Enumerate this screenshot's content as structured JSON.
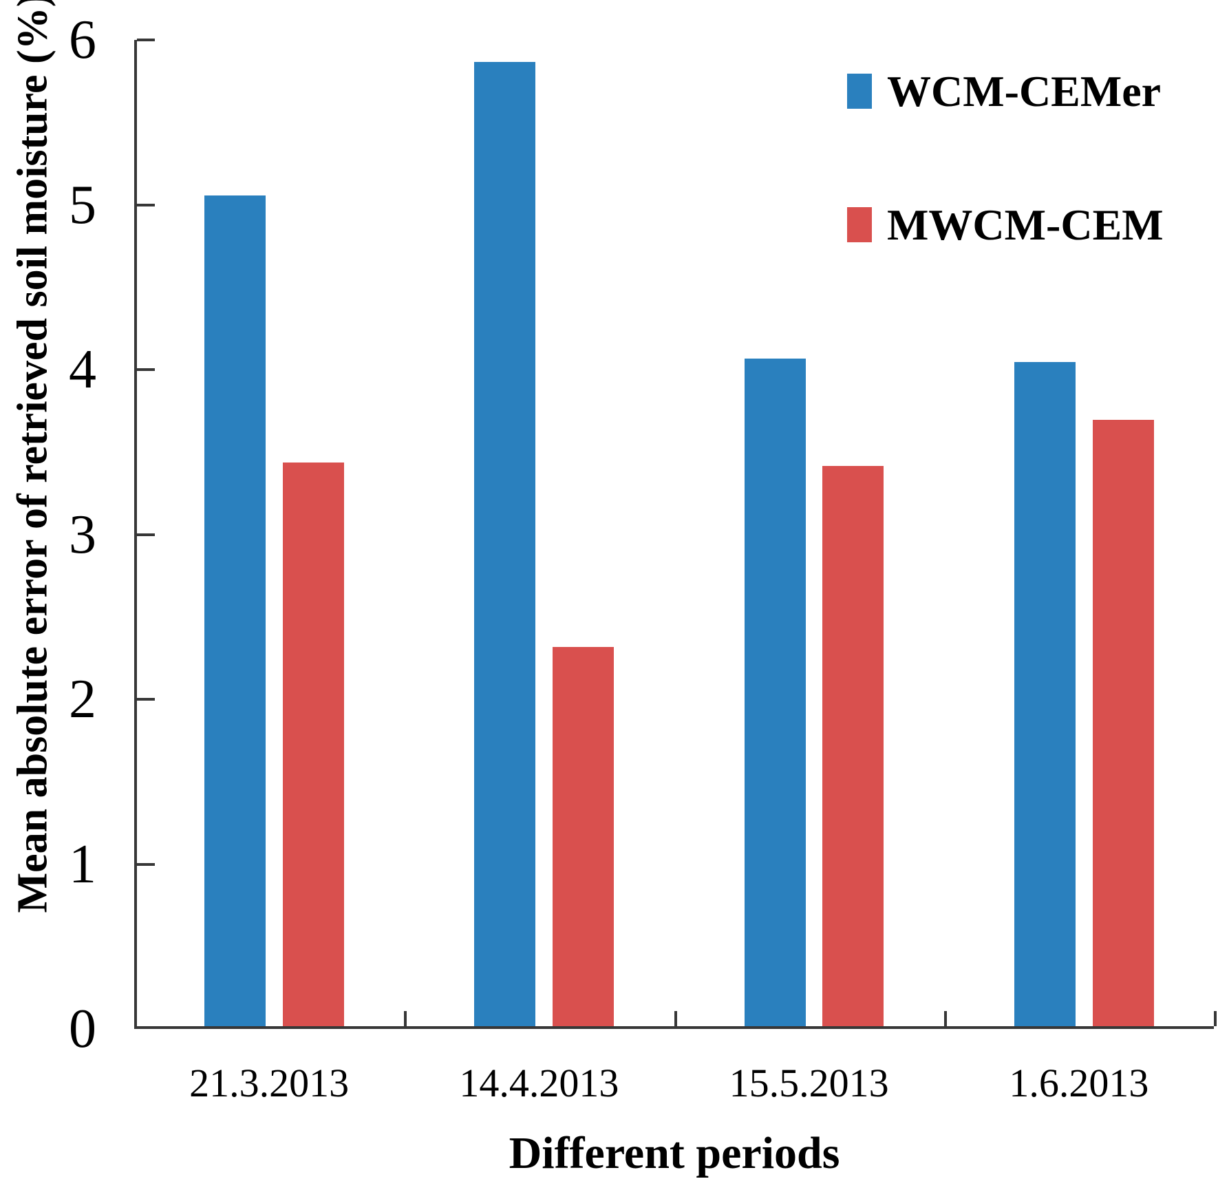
{
  "chart_data": {
    "type": "bar",
    "title": "",
    "xlabel": "Different periods",
    "ylabel": "Mean absolute error of retrieved soil moisture (%)",
    "categories": [
      "21.3.2013",
      "14.4.2013",
      "15.5.2013",
      "1.6.2013"
    ],
    "series": [
      {
        "name": "WCM-CEMer",
        "color": "#2A80BE",
        "values": [
          5.04,
          5.85,
          4.05,
          4.03
        ]
      },
      {
        "name": "MWCM-CEM",
        "color": "#D9504E",
        "values": [
          3.42,
          2.3,
          3.4,
          3.68
        ]
      }
    ],
    "ylim": [
      0,
      6
    ],
    "yticks": [
      0,
      1,
      2,
      3,
      4,
      5,
      6
    ],
    "grid": false,
    "legend_position": "top-right"
  }
}
